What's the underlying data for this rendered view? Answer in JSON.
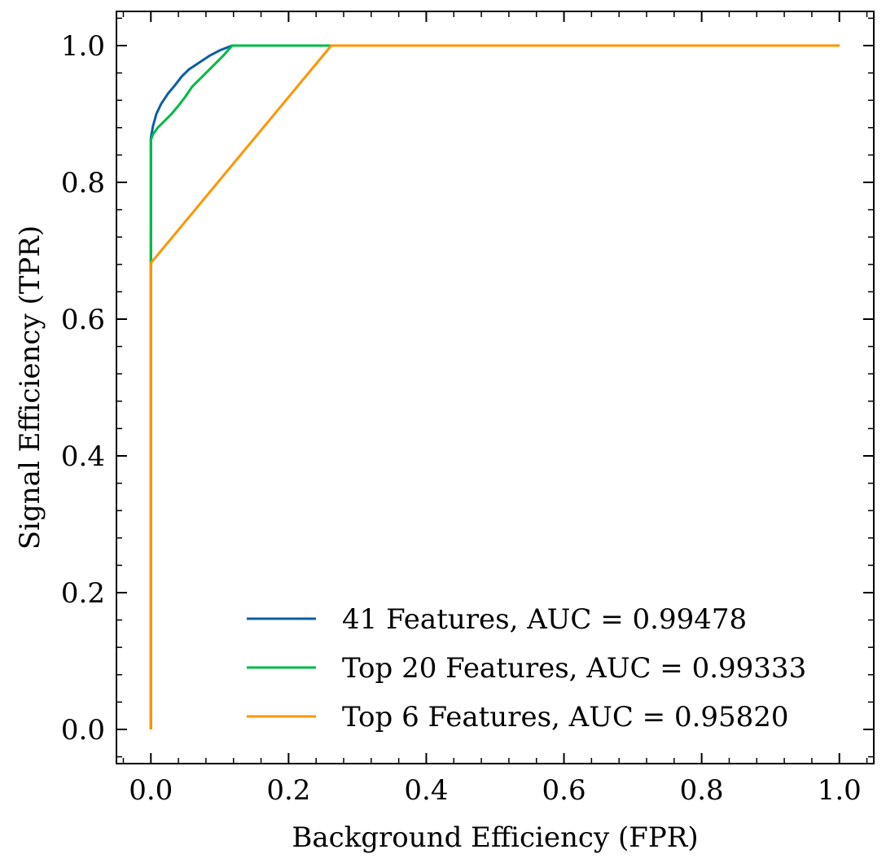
{
  "chart_data": {
    "type": "line",
    "xlabel": "Background Efficiency (FPR)",
    "ylabel": "Signal Efficiency (TPR)",
    "xlim": [
      -0.05,
      1.05
    ],
    "ylim": [
      -0.05,
      1.05
    ],
    "xticks": [
      0.0,
      0.2,
      0.4,
      0.6,
      0.8,
      1.0
    ],
    "xtick_labels": [
      "0.0",
      "0.2",
      "0.4",
      "0.6",
      "0.8",
      "1.0"
    ],
    "yticks": [
      0.0,
      0.2,
      0.4,
      0.6,
      0.8,
      1.0
    ],
    "ytick_labels": [
      "0.0",
      "0.2",
      "0.4",
      "0.6",
      "0.8",
      "1.0"
    ],
    "grid": false,
    "legend_position": "lower-right",
    "series": [
      {
        "name": "41 Features, AUC = 0.99478",
        "color": "#0C5DA5",
        "x": [
          0.0,
          0.0,
          0.003,
          0.008,
          0.015,
          0.025,
          0.035,
          0.045,
          0.055,
          0.07,
          0.085,
          0.1,
          0.118,
          1.0
        ],
        "y": [
          0.0,
          0.865,
          0.882,
          0.9,
          0.915,
          0.93,
          0.942,
          0.955,
          0.965,
          0.975,
          0.985,
          0.993,
          1.0,
          1.0
        ]
      },
      {
        "name": "Top 20 Features, AUC = 0.99333",
        "color": "#00B945",
        "x": [
          0.0,
          0.0,
          0.003,
          0.01,
          0.02,
          0.03,
          0.04,
          0.05,
          0.06,
          0.075,
          0.09,
          0.105,
          0.118,
          1.0
        ],
        "y": [
          0.0,
          0.862,
          0.87,
          0.88,
          0.89,
          0.9,
          0.912,
          0.925,
          0.94,
          0.955,
          0.97,
          0.985,
          1.0,
          1.0
        ]
      },
      {
        "name": "Top 6 Features, AUC = 0.95820",
        "color": "#FF9500",
        "x": [
          0.0,
          0.0,
          0.262,
          1.0
        ],
        "y": [
          0.0,
          0.682,
          1.0,
          1.0
        ]
      }
    ]
  }
}
